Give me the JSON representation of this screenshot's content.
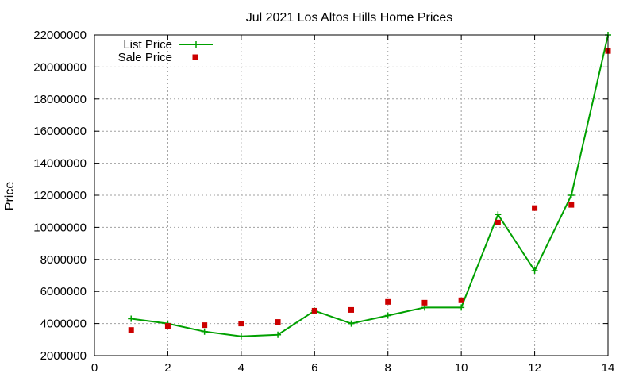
{
  "chart_data": {
    "type": "line",
    "title": "Jul 2021 Los Altos Hills Home Prices",
    "xlabel": "",
    "ylabel": "Price",
    "xlim": [
      0,
      14
    ],
    "ylim": [
      2000000,
      22000000
    ],
    "xticks": [
      0,
      2,
      4,
      6,
      8,
      10,
      12,
      14
    ],
    "yticks": [
      2000000,
      4000000,
      6000000,
      8000000,
      10000000,
      12000000,
      14000000,
      16000000,
      18000000,
      20000000,
      22000000
    ],
    "grid": true,
    "legend_position": "top-left",
    "series": [
      {
        "name": "List Price",
        "style": "line+plus",
        "color": "#00a000",
        "x": [
          1,
          2,
          3,
          4,
          5,
          6,
          7,
          8,
          9,
          10,
          11,
          12,
          13,
          14
        ],
        "values": [
          4300000,
          4000000,
          3500000,
          3200000,
          3300000,
          4800000,
          4000000,
          4500000,
          5000000,
          5000000,
          10800000,
          7300000,
          12000000,
          22000000
        ]
      },
      {
        "name": "Sale Price",
        "style": "square",
        "color": "#cc0000",
        "x": [
          1,
          2,
          3,
          4,
          5,
          6,
          7,
          8,
          9,
          10,
          11,
          12,
          13,
          14
        ],
        "values": [
          3600000,
          3850000,
          3900000,
          4000000,
          4100000,
          4800000,
          4850000,
          5350000,
          5300000,
          5450000,
          10300000,
          11200000,
          11400000,
          21000000
        ]
      }
    ]
  }
}
